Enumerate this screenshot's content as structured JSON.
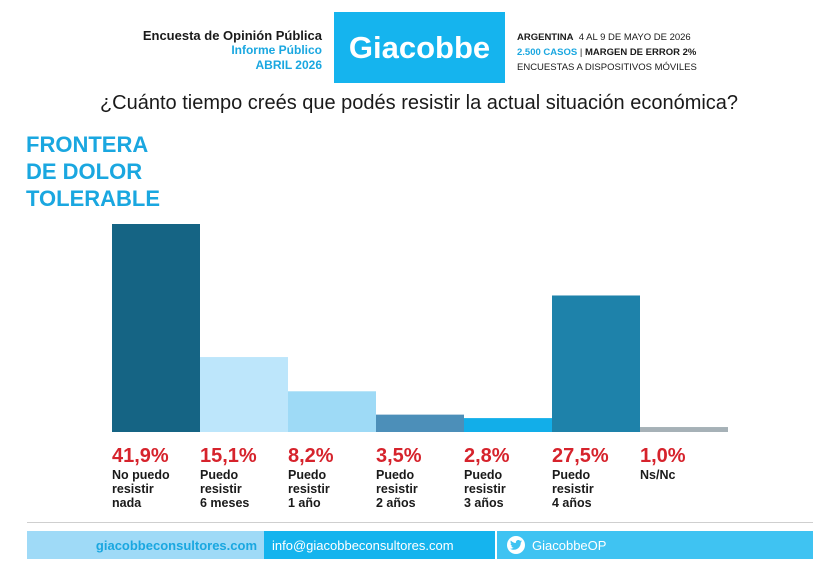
{
  "header": {
    "left_title": "Encuesta de Opinión Pública",
    "left_sub1": "Informe Público",
    "left_sub2": "ABRIL 2026",
    "brand": "Giacobbe",
    "country": "ARGENTINA",
    "dates": "4 AL 9 DE MAYO DE 2026",
    "cases": "2.500 CASOS",
    "margin": "MARGEN DE ERROR 2%",
    "method": "ENCUESTAS A DISPOSITIVOS MÓVILES"
  },
  "question": "¿Cuánto tiempo creés que podés resistir la actual situación económica?",
  "callout": {
    "line1": "FRONTERA",
    "line2": "DE DOLOR",
    "line3": "TOLERABLE"
  },
  "chart_data": {
    "type": "bar",
    "title": "¿Cuánto tiempo creés que podés resistir la actual situación económica?",
    "categories": [
      "No puedo resistir nada",
      "Puedo resistir 6 meses",
      "Puedo resistir 1 año",
      "Puedo resistir 2 años",
      "Puedo resistir 3 años",
      "Puedo resistir 4 años",
      "Ns/Nc"
    ],
    "category_labels": [
      "No puedo\nresistir\nnada",
      "Puedo\nresistir\n6 meses",
      "Puedo\nresistir\n1 año",
      "Puedo\nresistir\n2 años",
      "Puedo\nresistir\n3 años",
      "Puedo\nresistir\n4 años",
      "Ns/Nc"
    ],
    "values": [
      41.9,
      15.1,
      8.2,
      3.5,
      2.8,
      27.5,
      1.0
    ],
    "value_labels": [
      "41,9%",
      "15,1%",
      "8,2%",
      "3,5%",
      "2,8%",
      "27,5%",
      "1,0%"
    ],
    "colors": [
      "#156484",
      "#bde6fb",
      "#9edaf6",
      "#4c8fb9",
      "#12aee9",
      "#1e82aa",
      "#a6b1b7"
    ],
    "value_color": "#d6232c",
    "ylim": [
      0,
      41.9
    ],
    "grid": false,
    "legend": "none"
  },
  "footer": {
    "web": "giacobbeconsultores.com",
    "email": "info@giacobbeconsultores.com",
    "twitter": "GiacobbeOP",
    "twitter_icon": "twitter-bird-icon"
  }
}
